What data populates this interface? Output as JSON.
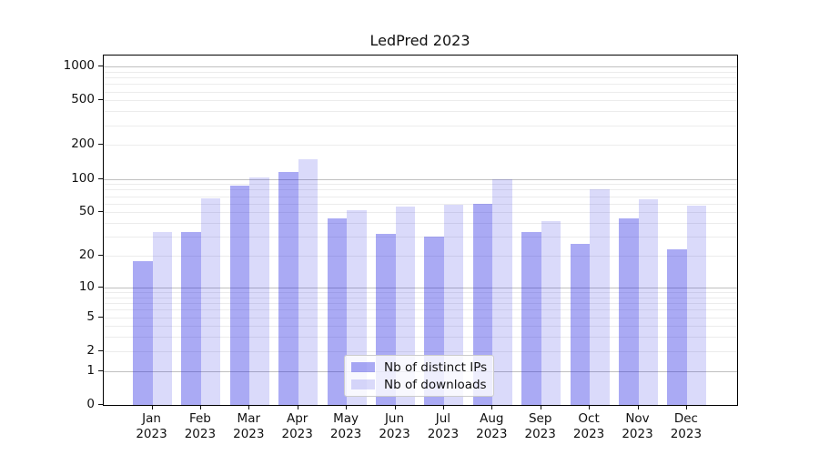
{
  "title": "LedPred 2023",
  "chart_data": {
    "type": "bar",
    "title": "LedPred 2023",
    "xlabel": "",
    "ylabel": "",
    "yscale": "log1p",
    "ylim": [
      0,
      1250
    ],
    "grid": "both",
    "legend_position": "lower center",
    "categories": [
      "Jan 2023",
      "Feb 2023",
      "Mar 2023",
      "Apr 2023",
      "May 2023",
      "Jun 2023",
      "Jul 2023",
      "Aug 2023",
      "Sep 2023",
      "Oct 2023",
      "Nov 2023",
      "Dec 2023"
    ],
    "series": [
      {
        "name": "Nb of distinct IPs",
        "color": "rgba(20,20,225,0.36)",
        "values": [
          18,
          33,
          87,
          115,
          44,
          32,
          30,
          60,
          33,
          26,
          44,
          23
        ]
      },
      {
        "name": "Nb of downloads",
        "color": "rgba(20,20,225,0.155)",
        "values": [
          33,
          67,
          103,
          150,
          52,
          56,
          58,
          100,
          42,
          80,
          66,
          57
        ]
      }
    ],
    "y_ticks": [
      0,
      1,
      2,
      5,
      10,
      20,
      50,
      100,
      200,
      500,
      1000
    ],
    "y_major_gridlines": [
      1,
      10,
      100,
      1000
    ]
  },
  "colors": {
    "major_grid": "#c0c0c0",
    "minor_grid": "#ececec",
    "spine": "#000000",
    "text": "#111111",
    "background": "#ffffff"
  }
}
